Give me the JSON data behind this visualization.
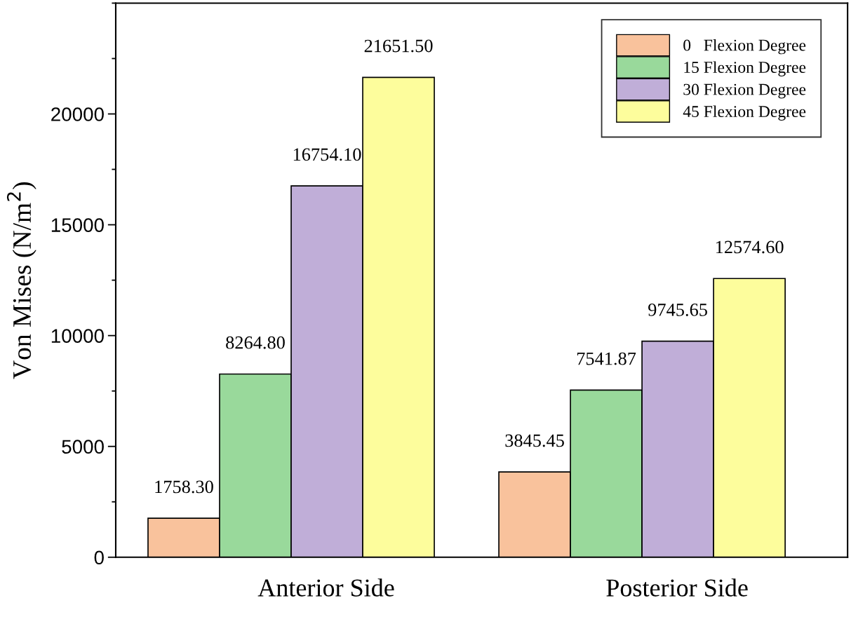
{
  "chart_data": {
    "type": "bar",
    "ylabel": "Von Mises (N/m$^{2}$)",
    "categories": [
      "Anterior Side",
      "Posterior Side"
    ],
    "series": [
      {
        "name": "0   Flexion Degree",
        "color": "#f9c29c",
        "values": [
          1758.3,
          3845.45
        ],
        "value_labels": [
          "1758.30",
          "3845.45"
        ]
      },
      {
        "name": "15 Flexion Degree",
        "color": "#99d99b",
        "values": [
          8264.8,
          7541.87
        ],
        "value_labels": [
          "8264.80",
          "7541.87"
        ]
      },
      {
        "name": "30 Flexion Degree",
        "color": "#c0aed8",
        "values": [
          16754.1,
          9745.65
        ],
        "value_labels": [
          "16754.10",
          "9745.65"
        ]
      },
      {
        "name": "45 Flexion Degree",
        "color": "#fdfd9c",
        "values": [
          21651.5,
          12574.6
        ],
        "value_labels": [
          "21651.50",
          "12574.60"
        ]
      }
    ],
    "ylim": [
      0,
      25000
    ],
    "yticks": [
      0,
      5000,
      10000,
      15000,
      20000
    ],
    "legend": "top right",
    "grid": false
  }
}
